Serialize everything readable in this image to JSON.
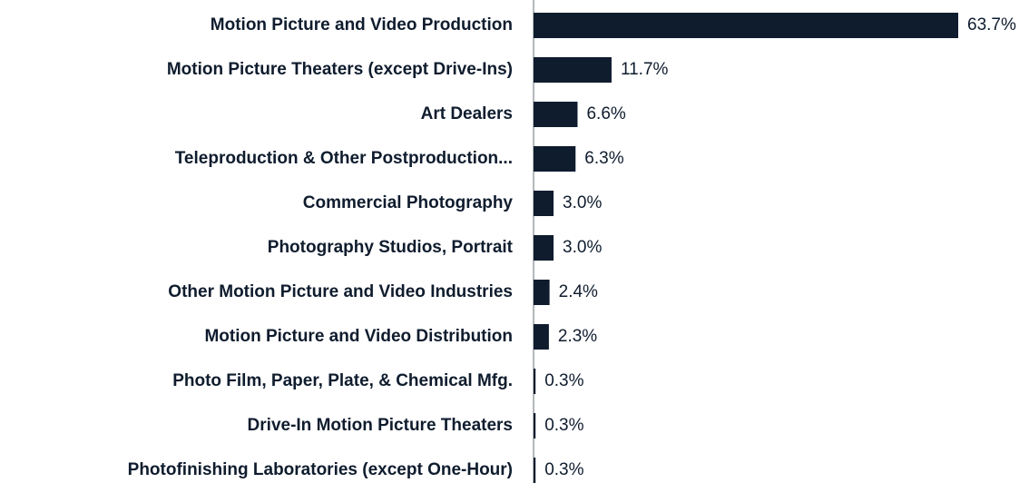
{
  "chart_data": {
    "type": "bar",
    "orientation": "horizontal",
    "categories": [
      "Motion Picture and Video Production",
      "Motion Picture Theaters (except Drive-Ins)",
      "Art Dealers",
      "Teleproduction & Other Postproduction...",
      "Commercial Photography",
      "Photography Studios, Portrait",
      "Other Motion Picture and Video Industries",
      "Motion Picture and Video Distribution",
      "Photo Film, Paper, Plate, & Chemical Mfg.",
      "Drive-In Motion Picture Theaters",
      "Photofinishing Laboratories (except One-Hour)"
    ],
    "values": [
      63.7,
      11.7,
      6.6,
      6.3,
      3.0,
      3.0,
      2.4,
      2.3,
      0.3,
      0.3,
      0.3
    ],
    "value_labels": [
      "63.7%",
      "11.7%",
      "6.6%",
      "6.3%",
      "3.0%",
      "3.0%",
      "2.4%",
      "2.3%",
      "0.3%",
      "0.3%",
      "0.3%"
    ],
    "color": "#0f1c2e"
  }
}
